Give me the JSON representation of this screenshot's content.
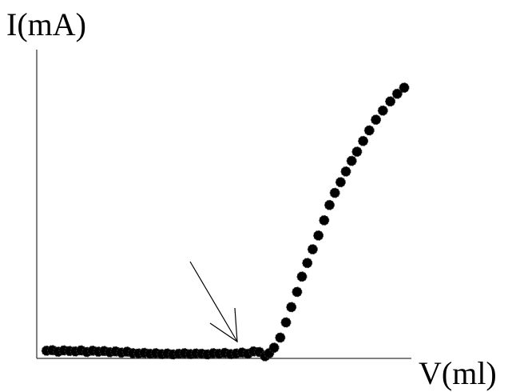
{
  "chart_data": {
    "type": "scatter",
    "ylabel": "I(mA)",
    "xlabel": "V(ml)",
    "x_ticks": [],
    "y_ticks": [],
    "grid": false,
    "legend": "none",
    "annotations": [
      {
        "type": "arrow",
        "points_to_x": 0.567
      }
    ],
    "xlim": [
      0,
      1
    ],
    "ylim": [
      0,
      1
    ],
    "marker_color": "#000000",
    "series": [
      {
        "x": [
          0.024,
          0.038,
          0.052,
          0.066,
          0.08,
          0.094,
          0.108,
          0.122,
          0.136,
          0.15,
          0.164,
          0.178,
          0.192,
          0.206,
          0.22,
          0.234,
          0.248,
          0.262,
          0.276,
          0.29,
          0.304,
          0.318,
          0.332,
          0.346,
          0.36,
          0.374,
          0.388,
          0.402,
          0.416,
          0.43,
          0.444,
          0.458,
          0.472,
          0.486,
          0.5,
          0.514,
          0.528,
          0.542,
          0.556,
          0.566,
          0.578,
          0.593,
          0.607,
          0.62,
          0.634,
          0.646,
          0.659,
          0.672,
          0.686,
          0.7,
          0.713,
          0.726,
          0.74,
          0.753,
          0.767,
          0.78,
          0.795,
          0.81,
          0.826,
          0.843,
          0.861,
          0.878,
          0.895
        ],
        "y": [
          0.012,
          0.014,
          0.009,
          0.013,
          0.011,
          0.01,
          0.013,
          0.008,
          0.012,
          0.009,
          0.011,
          0.007,
          0.01,
          0.006,
          0.009,
          0.004,
          0.003,
          0.005,
          0.002,
          0.004,
          0.001,
          0.003,
          0.0,
          0.002,
          0.004,
          0.001,
          0.003,
          0.002,
          0.0,
          0.004,
          0.002,
          0.005,
          0.001,
          0.003,
          0.006,
          0.002,
          0.01,
          0.008,
          -0.006,
          0.004,
          0.022,
          0.055,
          0.105,
          0.155,
          0.205,
          0.255,
          0.3,
          0.345,
          0.39,
          0.44,
          0.49,
          0.53,
          0.565,
          0.6,
          0.635,
          0.665,
          0.7,
          0.735,
          0.77,
          0.8,
          0.83,
          0.855,
          0.875
        ]
      }
    ]
  }
}
